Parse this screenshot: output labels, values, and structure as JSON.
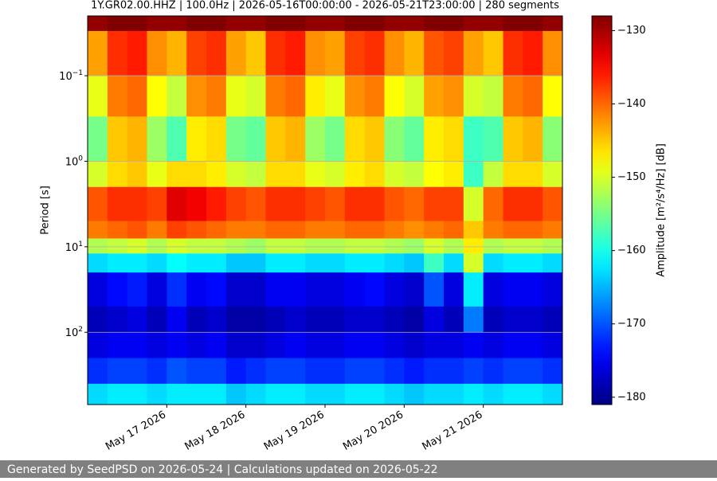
{
  "chart_data": {
    "type": "spectrogram",
    "title": "1Y.GR02.00.HHZ | 100.0Hz | 2026-05-16T00:00:00 - 2026-05-21T23:00:00 | 280 segments",
    "y_label": "Period [s]",
    "colorbar_label": "Amplitude [m²/s⁴/Hz] [dB]",
    "colormap": "jet",
    "y_log": true,
    "y_inverted": true,
    "grid": true,
    "xlim": [
      "2026-05-16",
      "2026-05-22"
    ],
    "xticks": [
      {
        "value": "2026-05-17",
        "label": "May 17 2026"
      },
      {
        "value": "2026-05-18",
        "label": "May 18 2026"
      },
      {
        "value": "2026-05-19",
        "label": "May 19 2026"
      },
      {
        "value": "2026-05-20",
        "label": "May 20 2026"
      },
      {
        "value": "2026-05-21",
        "label": "May 21 2026"
      }
    ],
    "ylim": [
      0.02,
      700
    ],
    "yticks": [
      {
        "value": 0.1,
        "label": "10",
        "exponent": "−1"
      },
      {
        "value": 1,
        "label": "10",
        "exponent": "0"
      },
      {
        "value": 10,
        "label": "10",
        "exponent": "1"
      },
      {
        "value": 100,
        "label": "10",
        "exponent": "2"
      }
    ],
    "clim": [
      -181,
      -128
    ],
    "cticks": [
      {
        "value": -130,
        "label": "−130"
      },
      {
        "value": -140,
        "label": "−140"
      },
      {
        "value": -150,
        "label": "−150"
      },
      {
        "value": -160,
        "label": "−160"
      },
      {
        "value": -170,
        "label": "−170"
      },
      {
        "value": -180,
        "label": "−180"
      }
    ],
    "y_edges": [
      0.02,
      0.03,
      0.1,
      0.3,
      1,
      2,
      5,
      8,
      12,
      20,
      50,
      100,
      200,
      400,
      700
    ],
    "values": [
      [
        -129,
        -128,
        -128,
        -129,
        -129,
        -128,
        -128,
        -129,
        -129,
        -128,
        -128,
        -129,
        -129,
        -128,
        -128,
        -129,
        -129,
        -128,
        -128,
        -129,
        -129,
        -128,
        -128,
        -129
      ],
      [
        -143,
        -137,
        -136,
        -142,
        -144,
        -138,
        -137,
        -143,
        -145,
        -137,
        -136,
        -142,
        -143,
        -138,
        -137,
        -142,
        -144,
        -139,
        -138,
        -143,
        -145,
        -137,
        -136,
        -142
      ],
      [
        -149,
        -141,
        -140,
        -148,
        -151,
        -142,
        -141,
        -149,
        -150,
        -141,
        -140,
        -147,
        -149,
        -142,
        -141,
        -148,
        -150,
        -143,
        -142,
        -150,
        -151,
        -141,
        -140,
        -148
      ],
      [
        -155,
        -145,
        -144,
        -153,
        -157,
        -147,
        -146,
        -155,
        -156,
        -145,
        -144,
        -153,
        -155,
        -146,
        -145,
        -154,
        -156,
        -147,
        -146,
        -158,
        -157,
        -145,
        -144,
        -154
      ],
      [
        -150,
        -146,
        -145,
        -149,
        -146,
        -146,
        -147,
        -150,
        -151,
        -146,
        -146,
        -149,
        -150,
        -147,
        -146,
        -150,
        -151,
        -148,
        -147,
        -158,
        -151,
        -146,
        -146,
        -150
      ],
      [
        -139,
        -137,
        -137,
        -138,
        -133,
        -134,
        -136,
        -138,
        -139,
        -137,
        -137,
        -138,
        -139,
        -137,
        -137,
        -139,
        -140,
        -138,
        -138,
        -150,
        -140,
        -137,
        -137,
        -139
      ],
      [
        -141,
        -140,
        -139,
        -141,
        -138,
        -139,
        -140,
        -141,
        -141,
        -140,
        -140,
        -141,
        -141,
        -140,
        -140,
        -141,
        -142,
        -141,
        -140,
        -145,
        -141,
        -140,
        -140,
        -141
      ],
      [
        -152,
        -151,
        -150,
        -152,
        -150,
        -151,
        -151,
        -152,
        -153,
        -151,
        -151,
        -152,
        -152,
        -151,
        -151,
        -152,
        -153,
        -150,
        -152,
        -147,
        -152,
        -151,
        -151,
        -152
      ],
      [
        -163,
        -162,
        -162,
        -163,
        -161,
        -162,
        -162,
        -164,
        -164,
        -162,
        -162,
        -163,
        -163,
        -162,
        -162,
        -163,
        -164,
        -158,
        -163,
        -150,
        -163,
        -162,
        -162,
        -163
      ],
      [
        -176,
        -174,
        -173,
        -176,
        -172,
        -175,
        -174,
        -177,
        -177,
        -175,
        -175,
        -176,
        -176,
        -175,
        -174,
        -176,
        -177,
        -170,
        -176,
        -162,
        -176,
        -175,
        -175,
        -176
      ],
      [
        -178,
        -177,
        -176,
        -178,
        -175,
        -178,
        -177,
        -179,
        -179,
        -178,
        -177,
        -178,
        -178,
        -177,
        -177,
        -178,
        -179,
        -176,
        -178,
        -168,
        -178,
        -177,
        -177,
        -178
      ],
      [
        -176,
        -175,
        -175,
        -176,
        -175,
        -176,
        -175,
        -177,
        -177,
        -176,
        -175,
        -176,
        -176,
        -175,
        -175,
        -176,
        -177,
        -176,
        -176,
        -175,
        -176,
        -175,
        -175,
        -176
      ],
      [
        -172,
        -171,
        -171,
        -172,
        -170,
        -171,
        -171,
        -173,
        -172,
        -171,
        -171,
        -172,
        -172,
        -171,
        -171,
        -172,
        -173,
        -172,
        -172,
        -171,
        -172,
        -171,
        -171,
        -172
      ],
      [
        -163,
        -162,
        -162,
        -163,
        -162,
        -162,
        -162,
        -164,
        -163,
        -162,
        -162,
        -163,
        -163,
        -162,
        -162,
        -163,
        -164,
        -163,
        -163,
        -162,
        -163,
        -162,
        -162,
        -163
      ]
    ],
    "footer": "Generated by SeedPSD on 2026-05-24 | Calculations updated on 2026-05-22"
  }
}
